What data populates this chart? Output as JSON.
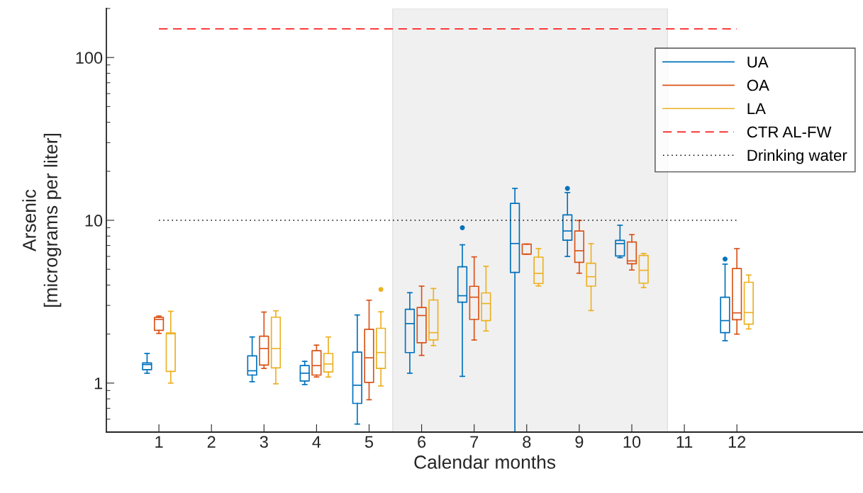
{
  "chart_data": {
    "type": "box",
    "xlabel": "Calendar months",
    "ylabel": "Arsenic\n[micrograms per liter]",
    "x": [
      1,
      3,
      4,
      5,
      6,
      7,
      8,
      9,
      10,
      12
    ],
    "xlim": [
      0,
      14.4
    ],
    "xticks": [
      1,
      2,
      3,
      4,
      5,
      6,
      7,
      8,
      9,
      10,
      11,
      12
    ],
    "log": "y",
    "ylim": [
      0.5,
      200
    ],
    "yticks": [
      1,
      10,
      100
    ],
    "grid": false,
    "legend": "top right",
    "series": [
      {
        "name": "UA",
        "color": "#0072bd",
        "boxes": [
          {
            "low": 1.15,
            "q1": 1.21,
            "median": 1.3,
            "q3": 1.33,
            "high": 1.52
          },
          {
            "low": 1.02,
            "q1": 1.12,
            "median": 1.19,
            "q3": 1.47,
            "high": 1.92
          },
          {
            "low": 0.98,
            "q1": 1.03,
            "median": 1.15,
            "q3": 1.28,
            "high": 1.36
          },
          {
            "low": 0.56,
            "q1": 0.75,
            "median": 0.97,
            "q3": 1.55,
            "high": 2.62
          },
          {
            "low": 1.15,
            "q1": 1.54,
            "median": 2.32,
            "q3": 2.84,
            "high": 3.59
          },
          {
            "low": 1.1,
            "q1": 3.14,
            "median": 3.44,
            "q3": 5.18,
            "high": 7.07,
            "outliers": [
              9.0
            ]
          },
          {
            "low": 0.5,
            "q1": 4.78,
            "median": 7.2,
            "q3": 12.7,
            "high": 15.7
          },
          {
            "low": 6.0,
            "q1": 7.55,
            "median": 8.6,
            "q3": 10.8,
            "high": 14.8,
            "outliers": [
              15.7
            ]
          },
          {
            "low": 5.9,
            "q1": 6.04,
            "median": 7.19,
            "q3": 7.53,
            "high": 9.32
          },
          {
            "low": 1.82,
            "q1": 2.04,
            "median": 2.42,
            "q3": 3.37,
            "high": 5.38,
            "outliers": [
              5.78
            ]
          }
        ]
      },
      {
        "name": "OA",
        "color": "#d95319",
        "boxes": [
          {
            "low": 2.02,
            "q1": 2.11,
            "median": 2.46,
            "q3": 2.53,
            "high": 2.58
          },
          {
            "low": 1.23,
            "q1": 1.29,
            "median": 1.63,
            "q3": 1.94,
            "high": 2.73
          },
          {
            "low": 1.09,
            "q1": 1.12,
            "median": 1.28,
            "q3": 1.58,
            "high": 1.71
          },
          {
            "low": 0.79,
            "q1": 1.01,
            "median": 1.43,
            "q3": 2.14,
            "high": 3.23
          },
          {
            "low": 1.48,
            "q1": 1.77,
            "median": 2.6,
            "q3": 2.91,
            "high": 3.94
          },
          {
            "low": 1.84,
            "q1": 2.46,
            "median": 3.37,
            "q3": 3.93,
            "high": 5.96
          },
          {
            "low": 6.2,
            "q1": 6.2,
            "median": 6.2,
            "q3": 7.14,
            "high": 7.14
          },
          {
            "low": 4.73,
            "q1": 5.52,
            "median": 6.5,
            "q3": 8.6,
            "high": 9.97
          },
          {
            "low": 4.95,
            "q1": 5.41,
            "median": 5.63,
            "q3": 7.36,
            "high": 8.16
          },
          {
            "low": 2.0,
            "q1": 2.45,
            "median": 2.7,
            "q3": 5.05,
            "high": 6.7
          }
        ]
      },
      {
        "name": "LA",
        "color": "#edb120",
        "boxes": [
          {
            "low": 1.0,
            "q1": 1.18,
            "median": 2.01,
            "q3": 2.03,
            "high": 2.76
          },
          {
            "low": 0.99,
            "q1": 1.24,
            "median": 1.63,
            "q3": 2.54,
            "high": 2.78
          },
          {
            "low": 1.09,
            "q1": 1.17,
            "median": 1.31,
            "q3": 1.52,
            "high": 1.92
          },
          {
            "low": 0.96,
            "q1": 1.23,
            "median": 1.54,
            "q3": 2.17,
            "high": 2.74,
            "outliers": [
              3.76
            ]
          },
          {
            "low": 1.7,
            "q1": 1.84,
            "median": 2.04,
            "q3": 3.24,
            "high": 3.81
          },
          {
            "low": 2.09,
            "q1": 2.42,
            "median": 3.08,
            "q3": 3.58,
            "high": 5.22
          },
          {
            "low": 3.95,
            "q1": 4.09,
            "median": 4.72,
            "q3": 5.94,
            "high": 6.7
          },
          {
            "low": 2.79,
            "q1": 3.94,
            "median": 4.5,
            "q3": 5.45,
            "high": 7.19
          },
          {
            "low": 3.86,
            "q1": 4.11,
            "median": 4.93,
            "q3": 6.08,
            "high": 6.25
          },
          {
            "low": 2.15,
            "q1": 2.3,
            "median": 2.71,
            "q3": 4.16,
            "high": 4.61
          }
        ]
      }
    ],
    "ref_lines": [
      {
        "axis": "y",
        "value": 150,
        "label": "CTR AL-FW",
        "color": "#ff0000",
        "line_style": "dashed"
      },
      {
        "axis": "y",
        "value": 10,
        "label": "Drinking water",
        "color": "#000000",
        "line_style": "dotted"
      }
    ],
    "bands": [
      {
        "axis": "x",
        "from": 5.45,
        "to": 10.68,
        "color": "#f0f0f0"
      }
    ]
  }
}
